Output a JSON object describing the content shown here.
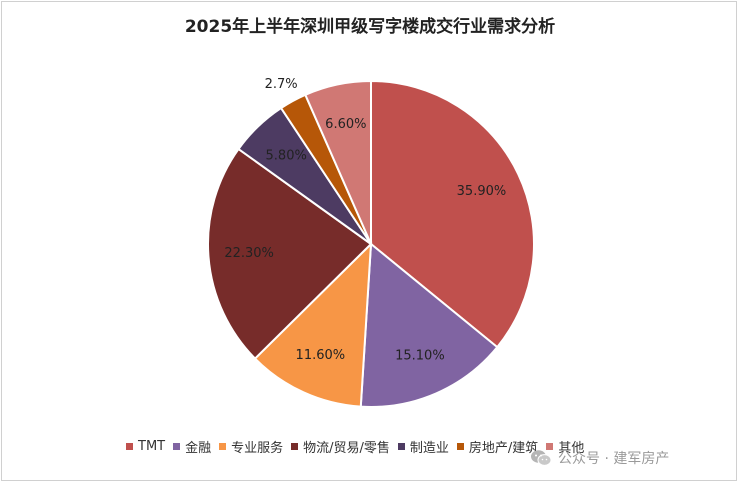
{
  "chart_data": {
    "type": "pie",
    "title": "2025年上半年深圳甲级写字楼成交行业需求分析",
    "legend_position": "bottom",
    "start_angle_deg": 0,
    "direction": "clockwise",
    "slices": [
      {
        "name": "TMT",
        "value": 35.9,
        "label": "35.90%",
        "color": "#C0504D",
        "label_inside": true
      },
      {
        "name": "金融",
        "value": 15.1,
        "label": "15.10%",
        "color": "#8064A2",
        "label_inside": true
      },
      {
        "name": "专业服务",
        "value": 11.6,
        "label": "11.60%",
        "color": "#F79646",
        "label_inside": true
      },
      {
        "name": "物流/贸易/零售",
        "value": 22.3,
        "label": "22.30%",
        "color": "#772C2A",
        "label_inside": true
      },
      {
        "name": "制造业",
        "value": 5.8,
        "label": "5.80%",
        "color": "#4D3B62",
        "label_inside": true
      },
      {
        "name": "房地产/建筑",
        "value": 2.7,
        "label": "2.7%",
        "color": "#B65708",
        "label_inside": false
      },
      {
        "name": "其他",
        "value": 6.6,
        "label": "6.60%",
        "color": "#D07874",
        "label_inside": true
      }
    ]
  },
  "watermark": {
    "text": "公众号 · 建军房产",
    "icon": "wechat-icon"
  }
}
